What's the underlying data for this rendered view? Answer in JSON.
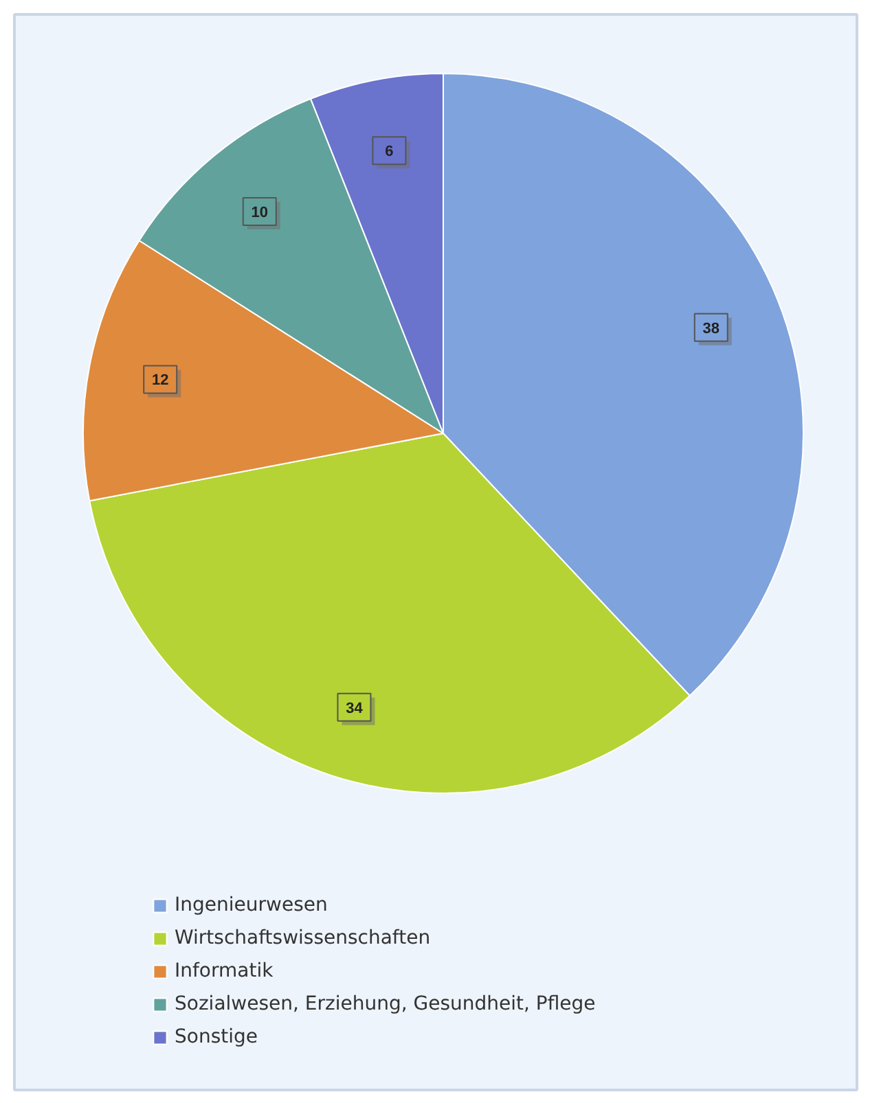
{
  "chart_data": {
    "type": "pie",
    "categories": [
      "Ingenieurwesen",
      "Wirtschaftswissenschaften",
      "Informatik",
      "Sozialwesen, Erziehung, Gesundheit, Pflege",
      "Sonstige"
    ],
    "values": [
      38,
      34,
      12,
      10,
      6
    ],
    "colors": [
      "#7fa3dc",
      "#b5d334",
      "#e08a3e",
      "#62a29c",
      "#6a74cc"
    ],
    "data_labels": true,
    "legend": "bottom"
  }
}
